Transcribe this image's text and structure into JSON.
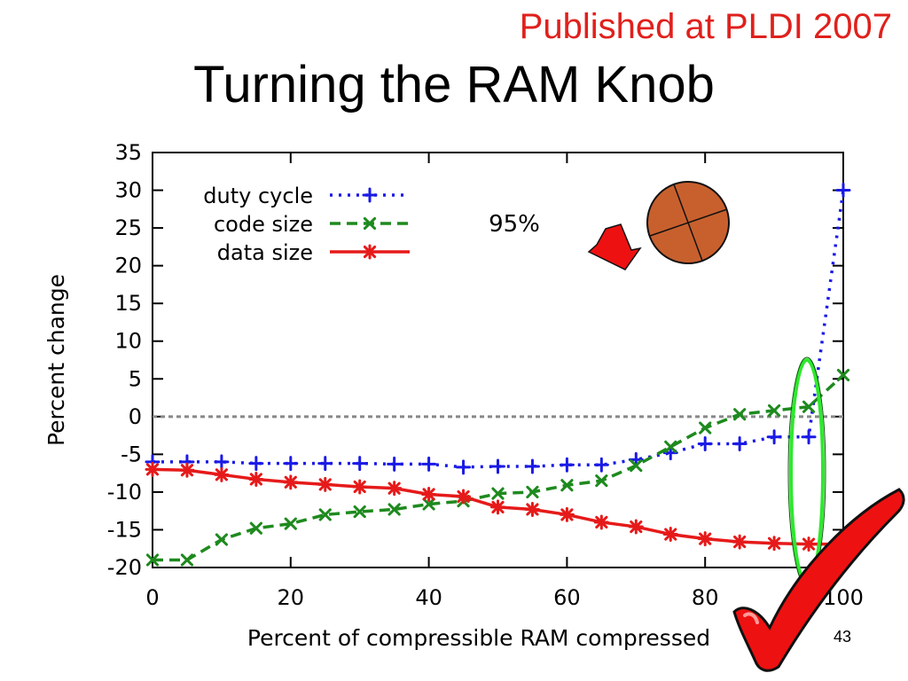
{
  "header": {
    "published": "Published at PLDI 2007",
    "title": "Turning the RAM Knob"
  },
  "footer": {
    "page_number": "43"
  },
  "annotation": {
    "percent_label": "95%"
  },
  "colors": {
    "duty_cycle": "#1a1ae6",
    "code_size": "#1e8a1e",
    "data_size": "#e61a1a",
    "zero_line": "#888888",
    "highlight_ellipse": "#2ee82e",
    "arrow": "#ee1111",
    "knob_fill": "#c8602e",
    "checkmark": "#ee1111"
  },
  "icons": {
    "arrow": "red-down-left-arrow-icon",
    "knob": "knob-icon",
    "check": "red-checkmark-icon"
  },
  "chart_data": {
    "type": "line",
    "title": "",
    "xlabel": "Percent of compressible RAM compressed",
    "ylabel": "Percent change",
    "xlim": [
      0,
      100
    ],
    "ylim": [
      -20,
      35
    ],
    "xticks": [
      0,
      20,
      40,
      60,
      80,
      100
    ],
    "yticks": [
      -20,
      -15,
      -10,
      -5,
      0,
      5,
      10,
      15,
      20,
      25,
      30,
      35
    ],
    "legend": "top-left",
    "grid": false,
    "x": [
      0,
      5,
      10,
      15,
      20,
      25,
      30,
      35,
      40,
      45,
      50,
      55,
      60,
      65,
      70,
      75,
      80,
      85,
      90,
      95,
      100
    ],
    "series": [
      {
        "name": "duty cycle",
        "style": "dotted",
        "marker": "+",
        "color": "#1a1ae6",
        "values": [
          -6,
          -6,
          -6,
          -6.2,
          -6.2,
          -6.2,
          -6.2,
          -6.3,
          -6.3,
          -6.7,
          -6.6,
          -6.6,
          -6.4,
          -6.4,
          -5.7,
          -4.8,
          -3.6,
          -3.6,
          -2.7,
          -2.7,
          30
        ]
      },
      {
        "name": "code size",
        "style": "dashed",
        "marker": "x",
        "color": "#1e8a1e",
        "values": [
          -19,
          -19,
          -16.3,
          -14.8,
          -14.2,
          -13,
          -12.6,
          -12.3,
          -11.6,
          -11.2,
          -10.2,
          -10,
          -9.1,
          -8.5,
          -6.5,
          -4,
          -1.5,
          0.3,
          0.8,
          1.3,
          5.5
        ]
      },
      {
        "name": "data size",
        "style": "solid",
        "marker": "*",
        "color": "#e61a1a",
        "values": [
          -7,
          -7.1,
          -7.7,
          -8.3,
          -8.7,
          -9,
          -9.3,
          -9.5,
          -10.3,
          -10.6,
          -12,
          -12.3,
          -13,
          -14,
          -14.6,
          -15.6,
          -16.2,
          -16.6,
          -16.8,
          -16.9,
          -16.9
        ]
      }
    ]
  }
}
